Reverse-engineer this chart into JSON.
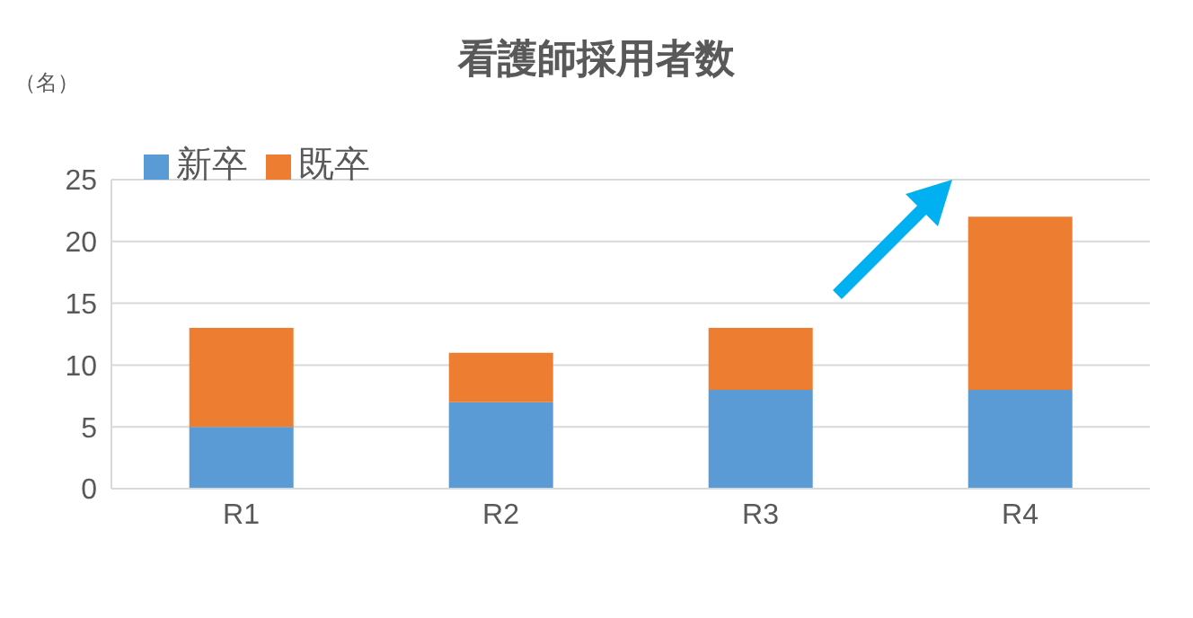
{
  "chart_data": {
    "type": "bar",
    "title": "看護師採用者数",
    "ylabel": "（名）",
    "categories": [
      "R1",
      "R2",
      "R3",
      "R4"
    ],
    "series": [
      {
        "name": "新卒",
        "color": "#5b9bd5",
        "values": [
          5,
          7,
          8,
          8
        ]
      },
      {
        "name": "既卒",
        "color": "#ed7d31",
        "values": [
          8,
          4,
          5,
          14
        ]
      }
    ],
    "stacked": true,
    "ylim": [
      0,
      25
    ],
    "yticks": [
      0,
      5,
      10,
      15,
      20,
      25
    ],
    "grid": "y",
    "legend": "top left"
  }
}
